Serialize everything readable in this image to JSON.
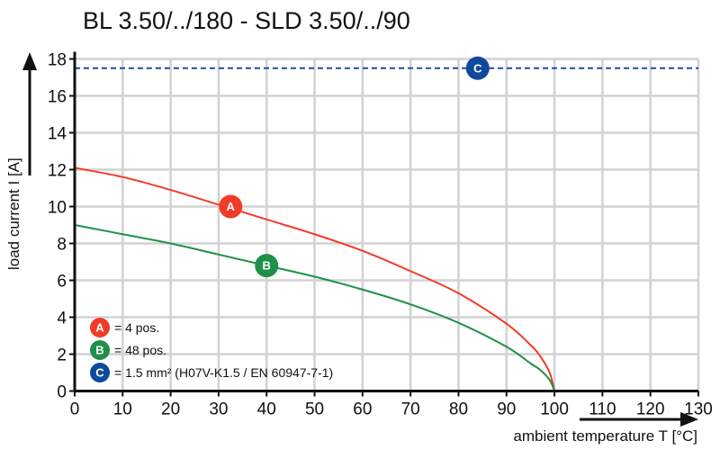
{
  "chart_data": {
    "type": "line",
    "title": "BL 3.50/../180 - SLD 3.50/../90",
    "xlabel": "ambient temperature T [°C]",
    "ylabel": "load current I [A]",
    "xlim": [
      0,
      130
    ],
    "ylim": [
      0,
      18
    ],
    "xticks": [
      0,
      10,
      20,
      30,
      40,
      50,
      60,
      70,
      80,
      90,
      100,
      110,
      120,
      130
    ],
    "yticks": [
      0,
      2,
      4,
      6,
      8,
      10,
      12,
      14,
      16,
      18
    ],
    "grid": true,
    "series": [
      {
        "marker": "A",
        "color": "#f03c28",
        "x": [
          0,
          10,
          20,
          30,
          40,
          50,
          60,
          70,
          80,
          90,
          95,
          97,
          99,
          100
        ],
        "y": [
          12.1,
          11.6,
          10.9,
          10.1,
          9.3,
          8.5,
          7.6,
          6.5,
          5.3,
          3.65,
          2.5,
          1.9,
          1.0,
          0
        ]
      },
      {
        "marker": "B",
        "color": "#1e9148",
        "x": [
          0,
          10,
          20,
          30,
          40,
          50,
          60,
          70,
          80,
          90,
          95,
          97,
          99,
          100
        ],
        "y": [
          9.0,
          8.5,
          8.0,
          7.4,
          6.8,
          6.2,
          5.5,
          4.7,
          3.7,
          2.4,
          1.5,
          1.15,
          0.6,
          0
        ]
      },
      {
        "marker": "C",
        "color": "#1a4fa0",
        "style": "dashed",
        "x": [
          0,
          130
        ],
        "y": [
          17.5,
          17.5
        ]
      }
    ],
    "markers": [
      {
        "label": "A",
        "x": 32.5,
        "y": 10.0,
        "color": "#f03c28"
      },
      {
        "label": "B",
        "x": 40,
        "y": 6.8,
        "color": "#1e9148"
      },
      {
        "label": "C",
        "x": 84,
        "y": 17.5,
        "color": "#0f4a9c"
      }
    ],
    "legend": {
      "placement": "bottom-left",
      "entries": [
        {
          "label": "A",
          "text": "= 4 pos.",
          "color": "#f03c28"
        },
        {
          "label": "B",
          "text": "= 48 pos.",
          "color": "#1e9148"
        },
        {
          "label": "C",
          "text": "= 1.5 mm² (H07V-K1.5 / EN 60947-7-1)",
          "color": "#0f4a9c"
        }
      ]
    }
  }
}
